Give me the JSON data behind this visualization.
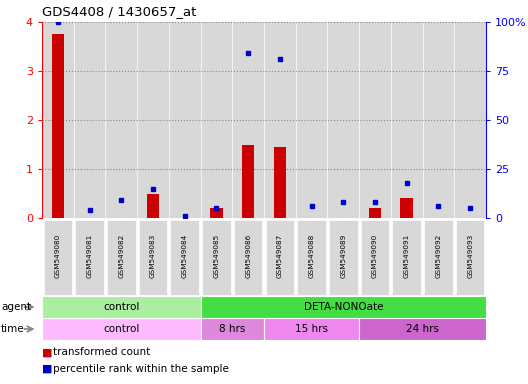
{
  "title": "GDS4408 / 1430657_at",
  "samples": [
    "GSM549080",
    "GSM549081",
    "GSM549082",
    "GSM549083",
    "GSM549084",
    "GSM549085",
    "GSM549086",
    "GSM549087",
    "GSM549088",
    "GSM549089",
    "GSM549090",
    "GSM549091",
    "GSM549092",
    "GSM549093"
  ],
  "transformed_count": [
    3.75,
    0.0,
    0.0,
    0.5,
    0.0,
    0.2,
    1.5,
    1.45,
    0.0,
    0.0,
    0.2,
    0.4,
    0.0,
    0.0
  ],
  "percentile_rank": [
    100,
    4,
    9,
    15,
    1,
    5,
    84,
    81,
    6,
    8,
    8,
    18,
    6,
    5
  ],
  "ylim_left": [
    0,
    4
  ],
  "ylim_right": [
    0,
    100
  ],
  "yticks_left": [
    0,
    1,
    2,
    3,
    4
  ],
  "yticks_right": [
    0,
    25,
    50,
    75,
    100
  ],
  "yticklabels_right": [
    "0",
    "25",
    "50",
    "75",
    "100%"
  ],
  "bar_color": "#cc0000",
  "dot_color": "#0000cc",
  "agent_groups": [
    {
      "label": "control",
      "start": 0,
      "end": 5,
      "color": "#aaeea a"
    },
    {
      "label": "DETA-NONOate",
      "start": 5,
      "end": 14,
      "color": "#44dd44"
    }
  ],
  "time_groups": [
    {
      "label": "control",
      "start": 0,
      "end": 5,
      "color": "#ffbbff"
    },
    {
      "label": "8 hrs",
      "start": 5,
      "end": 7,
      "color": "#dd88dd"
    },
    {
      "label": "15 hrs",
      "start": 7,
      "end": 10,
      "color": "#ee88ee"
    },
    {
      "label": "24 hrs",
      "start": 10,
      "end": 14,
      "color": "#cc66cc"
    }
  ],
  "legend_items": [
    {
      "label": "transformed count",
      "color": "#cc0000"
    },
    {
      "label": "percentile rank within the sample",
      "color": "#0000cc"
    }
  ],
  "col_bg_color": "#dddddd",
  "grid_color": "#888888"
}
